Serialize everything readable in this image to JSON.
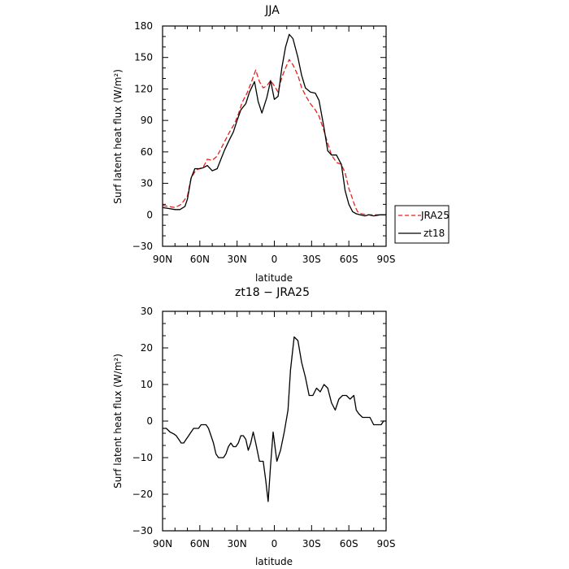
{
  "chart_data": [
    {
      "type": "line",
      "title": "JJA",
      "xlabel": "latitude",
      "ylabel": "Surf latent heat flux (W/m²)",
      "xlim": [
        90,
        -90
      ],
      "ylim": [
        -30,
        180
      ],
      "x_ticks": [
        90,
        60,
        30,
        0,
        -30,
        -60,
        -90
      ],
      "x_tick_labels": [
        "90N",
        "60N",
        "30N",
        "0",
        "30S",
        "60S",
        "90S"
      ],
      "y_ticks": [
        -30,
        0,
        30,
        60,
        90,
        120,
        150,
        180
      ],
      "y_tick_labels": [
        "−30",
        "0",
        "30",
        "60",
        "90",
        "120",
        "150",
        "180"
      ],
      "legend_position": "right",
      "series": [
        {
          "name": "JRA25",
          "color": "#e8201c",
          "style": "dashed",
          "x": [
            90,
            85,
            80,
            75,
            70,
            67,
            63,
            60,
            57,
            54,
            50,
            46,
            43,
            40,
            36,
            32,
            29,
            26,
            22,
            18,
            15,
            12,
            9,
            6,
            3,
            0,
            -3,
            -6,
            -9,
            -12,
            -15,
            -19,
            -22,
            -26,
            -29,
            -33,
            -36,
            -40,
            -43,
            -46,
            -50,
            -54,
            -57,
            -60,
            -63,
            -65,
            -67,
            -70,
            -75,
            -80,
            -85,
            -88,
            -90
          ],
          "y": [
            9,
            8,
            7,
            10,
            18,
            35,
            43,
            44,
            46,
            53,
            52,
            56,
            63,
            70,
            79,
            87,
            96,
            107,
            116,
            128,
            138,
            127,
            121,
            123,
            128,
            123,
            117,
            131,
            140,
            148,
            143,
            133,
            121,
            112,
            106,
            100,
            94,
            80,
            68,
            57,
            50,
            48,
            40,
            25,
            15,
            8,
            3,
            1,
            0,
            0,
            0,
            0,
            0
          ]
        },
        {
          "name": "zt18",
          "color": "#000000",
          "style": "solid",
          "x": [
            90,
            85,
            80,
            76,
            72,
            70,
            67,
            64,
            60,
            57,
            54,
            50,
            46,
            43,
            40,
            36,
            33,
            30,
            27,
            23,
            20,
            16,
            13,
            10,
            6,
            3,
            0,
            -3,
            -6,
            -9,
            -12,
            -15,
            -19,
            -22,
            -25,
            -29,
            -33,
            -36,
            -40,
            -43,
            -46,
            -50,
            -54,
            -57,
            -60,
            -63,
            -66,
            -69,
            -73,
            -76,
            -80,
            -85,
            -88,
            -90
          ],
          "y": [
            7,
            6,
            5,
            5,
            8,
            15,
            35,
            44,
            44,
            45,
            47,
            42,
            44,
            53,
            62,
            72,
            79,
            90,
            100,
            106,
            117,
            127,
            108,
            97,
            112,
            128,
            110,
            113,
            140,
            160,
            172,
            168,
            150,
            133,
            121,
            117,
            116,
            109,
            83,
            61,
            57,
            57,
            48,
            23,
            10,
            3,
            1,
            0,
            -1,
            0,
            -1,
            0,
            0,
            0
          ]
        }
      ]
    },
    {
      "type": "line",
      "title": "zt18 − JRA25",
      "xlabel": "latitude",
      "ylabel": "Surf latent heat flux (W/m²)",
      "xlim": [
        90,
        -90
      ],
      "ylim": [
        -30,
        30
      ],
      "x_ticks": [
        90,
        60,
        30,
        0,
        -30,
        -60,
        -90
      ],
      "x_tick_labels": [
        "90N",
        "60N",
        "30N",
        "0",
        "30S",
        "60S",
        "90S"
      ],
      "y_ticks": [
        -30,
        -20,
        -10,
        0,
        10,
        20,
        30
      ],
      "y_tick_labels": [
        "−30",
        "−20",
        "−10",
        "0",
        "10",
        "20",
        "30"
      ],
      "series": [
        {
          "color": "#000000",
          "style": "solid",
          "x": [
            90,
            87,
            84,
            81,
            79,
            77,
            75,
            73,
            71,
            69,
            67,
            65,
            63,
            61,
            59,
            57,
            55,
            53,
            51,
            49,
            47,
            45,
            43,
            41,
            39,
            37,
            35,
            33,
            31,
            29,
            27,
            25,
            23,
            21,
            19,
            17,
            15,
            12,
            9,
            7,
            5,
            3,
            1,
            -2,
            -5,
            -8,
            -11,
            -13,
            -16,
            -19,
            -22,
            -25,
            -28,
            -31,
            -34,
            -37,
            -40,
            -43,
            -46,
            -49,
            -52,
            -55,
            -58,
            -61,
            -64,
            -66,
            -68,
            -71,
            -74,
            -77,
            -80,
            -83,
            -86,
            -88,
            -90
          ],
          "y": [
            -2,
            -2,
            -3,
            -3.5,
            -4,
            -5,
            -6,
            -6,
            -5,
            -4,
            -3,
            -2,
            -2,
            -2,
            -1,
            -1,
            -1,
            -2,
            -4,
            -6,
            -9,
            -10,
            -10,
            -10,
            -9,
            -7,
            -6,
            -7,
            -7,
            -6,
            -4,
            -4,
            -5,
            -8,
            -6,
            -3,
            -6,
            -11,
            -11,
            -16,
            -22,
            -12,
            -3,
            -11,
            -8,
            -3,
            3,
            14,
            23,
            22,
            16,
            12,
            7,
            7,
            9,
            8,
            10,
            9,
            5,
            3,
            6,
            7,
            7,
            6,
            7,
            3,
            2,
            1,
            1,
            1,
            -1,
            -1,
            -1,
            0,
            0
          ]
        }
      ]
    }
  ]
}
